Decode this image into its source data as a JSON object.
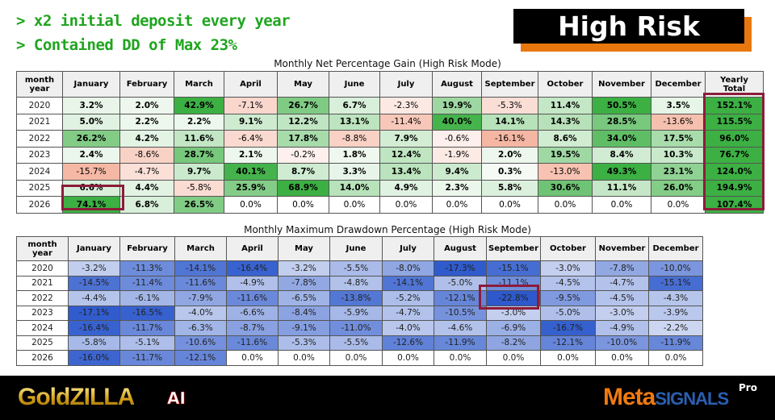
{
  "header": {
    "bullets": [
      "> x2 initial deposit every year",
      "> Contained DD of Max 23%"
    ],
    "badge": "High Risk"
  },
  "gain_table": {
    "title": "Monthly Net Percentage Gain (High Risk Mode)",
    "corner": [
      "month",
      "year"
    ],
    "columns": [
      "January",
      "February",
      "March",
      "April",
      "May",
      "June",
      "July",
      "August",
      "September",
      "October",
      "November",
      "December"
    ],
    "total_header": [
      "Yearly",
      "Total"
    ],
    "rows": [
      {
        "year": "2020",
        "values": [
          3.2,
          2.0,
          42.9,
          -7.1,
          26.7,
          6.7,
          -2.3,
          19.9,
          -5.3,
          11.4,
          50.5,
          3.5
        ],
        "total": 152.1
      },
      {
        "year": "2021",
        "values": [
          5.0,
          2.2,
          2.2,
          9.1,
          12.2,
          13.1,
          -11.4,
          40.0,
          14.1,
          14.3,
          28.5,
          -13.6
        ],
        "total": 115.5
      },
      {
        "year": "2022",
        "values": [
          26.2,
          4.2,
          11.6,
          -6.4,
          17.8,
          -8.8,
          7.9,
          -0.6,
          -16.1,
          8.6,
          34.0,
          17.5
        ],
        "total": 96.0
      },
      {
        "year": "2023",
        "values": [
          2.4,
          -8.6,
          28.7,
          2.1,
          -0.2,
          1.8,
          12.4,
          -1.9,
          2.0,
          19.5,
          8.4,
          10.3
        ],
        "total": 76.7
      },
      {
        "year": "2024",
        "values": [
          -15.7,
          -4.7,
          9.7,
          40.1,
          8.7,
          3.3,
          13.4,
          9.4,
          0.3,
          -13.0,
          49.3,
          23.1
        ],
        "total": 124.0
      },
      {
        "year": "2025",
        "values": [
          6.6,
          4.4,
          -5.8,
          25.9,
          68.9,
          14.0,
          4.9,
          2.3,
          5.8,
          30.6,
          11.1,
          26.0
        ],
        "total": 194.9
      },
      {
        "year": "2026",
        "values": [
          74.1,
          6.8,
          26.5,
          0.0,
          0.0,
          0.0,
          0.0,
          0.0,
          0.0,
          0.0,
          0.0,
          0.0
        ],
        "total": 107.4
      }
    ]
  },
  "dd_table": {
    "title": "Monthly Maximum Drawdown Percentage (High Risk Mode)",
    "corner": [
      "month",
      "year"
    ],
    "columns": [
      "January",
      "February",
      "March",
      "April",
      "May",
      "June",
      "July",
      "August",
      "September",
      "October",
      "November",
      "December"
    ],
    "rows": [
      {
        "year": "2020",
        "values": [
          -3.2,
          -11.3,
          -14.1,
          -16.4,
          -3.2,
          -5.5,
          -8.0,
          -17.3,
          -15.1,
          -3.0,
          -7.8,
          -10.0
        ]
      },
      {
        "year": "2021",
        "values": [
          -14.5,
          -11.4,
          -11.6,
          -4.9,
          -7.8,
          -4.8,
          -14.1,
          -5.0,
          -11.1,
          -4.5,
          -4.7,
          -15.1
        ]
      },
      {
        "year": "2022",
        "values": [
          -4.4,
          -6.1,
          -7.9,
          -11.6,
          -6.5,
          -13.8,
          -5.2,
          -12.1,
          -22.8,
          -9.5,
          -4.5,
          -4.3
        ]
      },
      {
        "year": "2023",
        "values": [
          -17.1,
          -16.5,
          -4.0,
          -6.6,
          -8.4,
          -5.9,
          -4.7,
          -10.5,
          -3.0,
          -5.0,
          -3.0,
          -3.9
        ]
      },
      {
        "year": "2024",
        "values": [
          -16.4,
          -11.7,
          -6.3,
          -8.7,
          -9.1,
          -11.0,
          -4.0,
          -4.6,
          -6.9,
          -16.7,
          -4.9,
          -2.2
        ]
      },
      {
        "year": "2025",
        "values": [
          -5.8,
          -5.1,
          -10.6,
          -11.6,
          -5.3,
          -5.5,
          -12.6,
          -11.9,
          -8.2,
          -12.1,
          -10.0,
          -11.9
        ]
      },
      {
        "year": "2026",
        "values": [
          -16.0,
          -11.7,
          -12.1,
          0.0,
          0.0,
          0.0,
          0.0,
          0.0,
          0.0,
          0.0,
          0.0,
          0.0
        ]
      }
    ]
  },
  "footer": {
    "left_logo": "GoldZILLA",
    "left_logo_suffix": "AI",
    "right_logo": "Meta",
    "right_logo_2": "SIGNALS",
    "right_logo_sup": "Pro"
  },
  "colors": {
    "green": "#3cb043",
    "red": "#f5b7a3",
    "blue": "#2d59cc",
    "highlight": "#8c1c3a",
    "badge_shadow": "#e8780e"
  }
}
